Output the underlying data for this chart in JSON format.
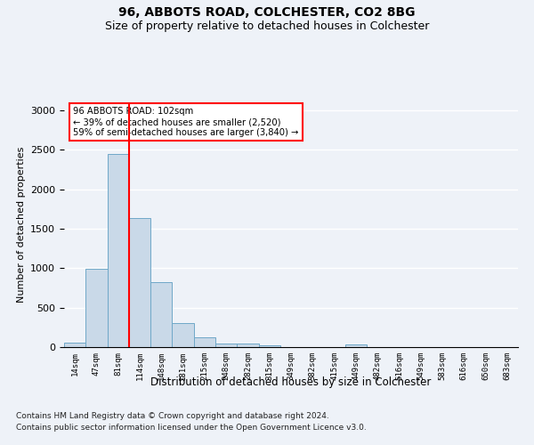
{
  "title1": "96, ABBOTS ROAD, COLCHESTER, CO2 8BG",
  "title2": "Size of property relative to detached houses in Colchester",
  "xlabel": "Distribution of detached houses by size in Colchester",
  "ylabel": "Number of detached properties",
  "footnote1": "Contains HM Land Registry data © Crown copyright and database right 2024.",
  "footnote2": "Contains public sector information licensed under the Open Government Licence v3.0.",
  "annotation_line1": "96 ABBOTS ROAD: 102sqm",
  "annotation_line2": "← 39% of detached houses are smaller (2,520)",
  "annotation_line3": "59% of semi-detached houses are larger (3,840) →",
  "bar_color": "#c9d9e8",
  "bar_edge_color": "#6fa8c8",
  "vline_color": "red",
  "vline_x_index": 2,
  "categories": [
    "14sqm",
    "47sqm",
    "81sqm",
    "114sqm",
    "148sqm",
    "181sqm",
    "215sqm",
    "248sqm",
    "282sqm",
    "315sqm",
    "349sqm",
    "382sqm",
    "415sqm",
    "449sqm",
    "482sqm",
    "516sqm",
    "549sqm",
    "583sqm",
    "616sqm",
    "650sqm",
    "683sqm"
  ],
  "values": [
    55,
    990,
    2450,
    1640,
    820,
    305,
    125,
    50,
    40,
    20,
    0,
    0,
    0,
    30,
    0,
    0,
    0,
    0,
    0,
    0,
    0
  ],
  "ylim": [
    0,
    3100
  ],
  "yticks": [
    0,
    500,
    1000,
    1500,
    2000,
    2500,
    3000
  ],
  "background_color": "#eef2f8",
  "grid_color": "#ffffff"
}
